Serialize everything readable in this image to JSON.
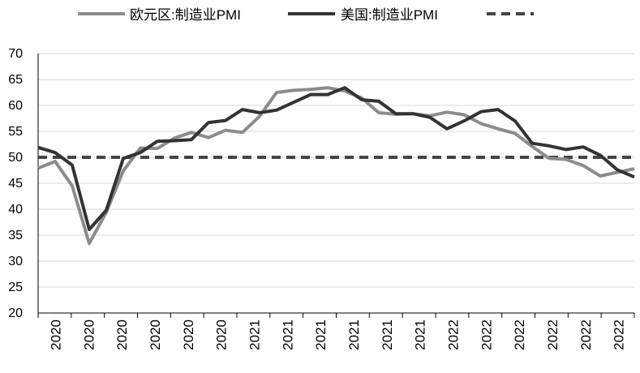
{
  "chart_data": {
    "type": "line",
    "title": "",
    "xlabel": "",
    "ylabel": "",
    "ylim": [
      20,
      70
    ],
    "yticks": [
      20,
      25,
      30,
      35,
      40,
      45,
      50,
      55,
      60,
      65,
      70
    ],
    "grid": "horizontal",
    "legend_position": "top",
    "x_tick_labels": [
      "2020",
      "2020",
      "2020",
      "2020",
      "2020",
      "2020",
      "2021",
      "2021",
      "2021",
      "2021",
      "2021",
      "2021",
      "2022",
      "2022",
      "2022",
      "2022",
      "2022",
      "2022"
    ],
    "series": [
      {
        "name": "欧元区:制造业PMI",
        "color": "#8c8c8c",
        "style": "solid",
        "values": [
          47.9,
          49.2,
          44.5,
          33.4,
          39.4,
          47.4,
          51.8,
          51.7,
          53.7,
          54.8,
          53.8,
          55.2,
          54.8,
          57.9,
          62.5,
          62.9,
          63.1,
          63.4,
          62.8,
          61.4,
          58.6,
          58.3,
          58.4,
          58.0,
          58.7,
          58.2,
          56.5,
          55.5,
          54.6,
          52.1,
          49.8,
          49.6,
          48.4,
          46.4,
          47.1,
          47.8
        ]
      },
      {
        "name": "美国:制造业PMI",
        "color": "#333333",
        "style": "solid",
        "values": [
          51.9,
          50.9,
          48.5,
          36.1,
          39.8,
          49.8,
          50.9,
          53.1,
          53.2,
          53.4,
          56.7,
          57.1,
          59.2,
          58.6,
          59.1,
          60.6,
          62.1,
          62.1,
          63.4,
          61.1,
          60.8,
          58.4,
          58.4,
          57.7,
          55.5,
          57.0,
          58.8,
          59.2,
          57.0,
          52.7,
          52.2,
          51.5,
          52.0,
          50.4,
          47.6,
          46.2
        ]
      },
      {
        "name": "",
        "color": "#444444",
        "style": "dashed",
        "values": [
          50,
          50,
          50,
          50,
          50,
          50,
          50,
          50,
          50,
          50,
          50,
          50,
          50,
          50,
          50,
          50,
          50,
          50,
          50,
          50,
          50,
          50,
          50,
          50,
          50,
          50,
          50,
          50,
          50,
          50,
          50,
          50,
          50,
          50,
          50,
          50
        ]
      }
    ]
  }
}
